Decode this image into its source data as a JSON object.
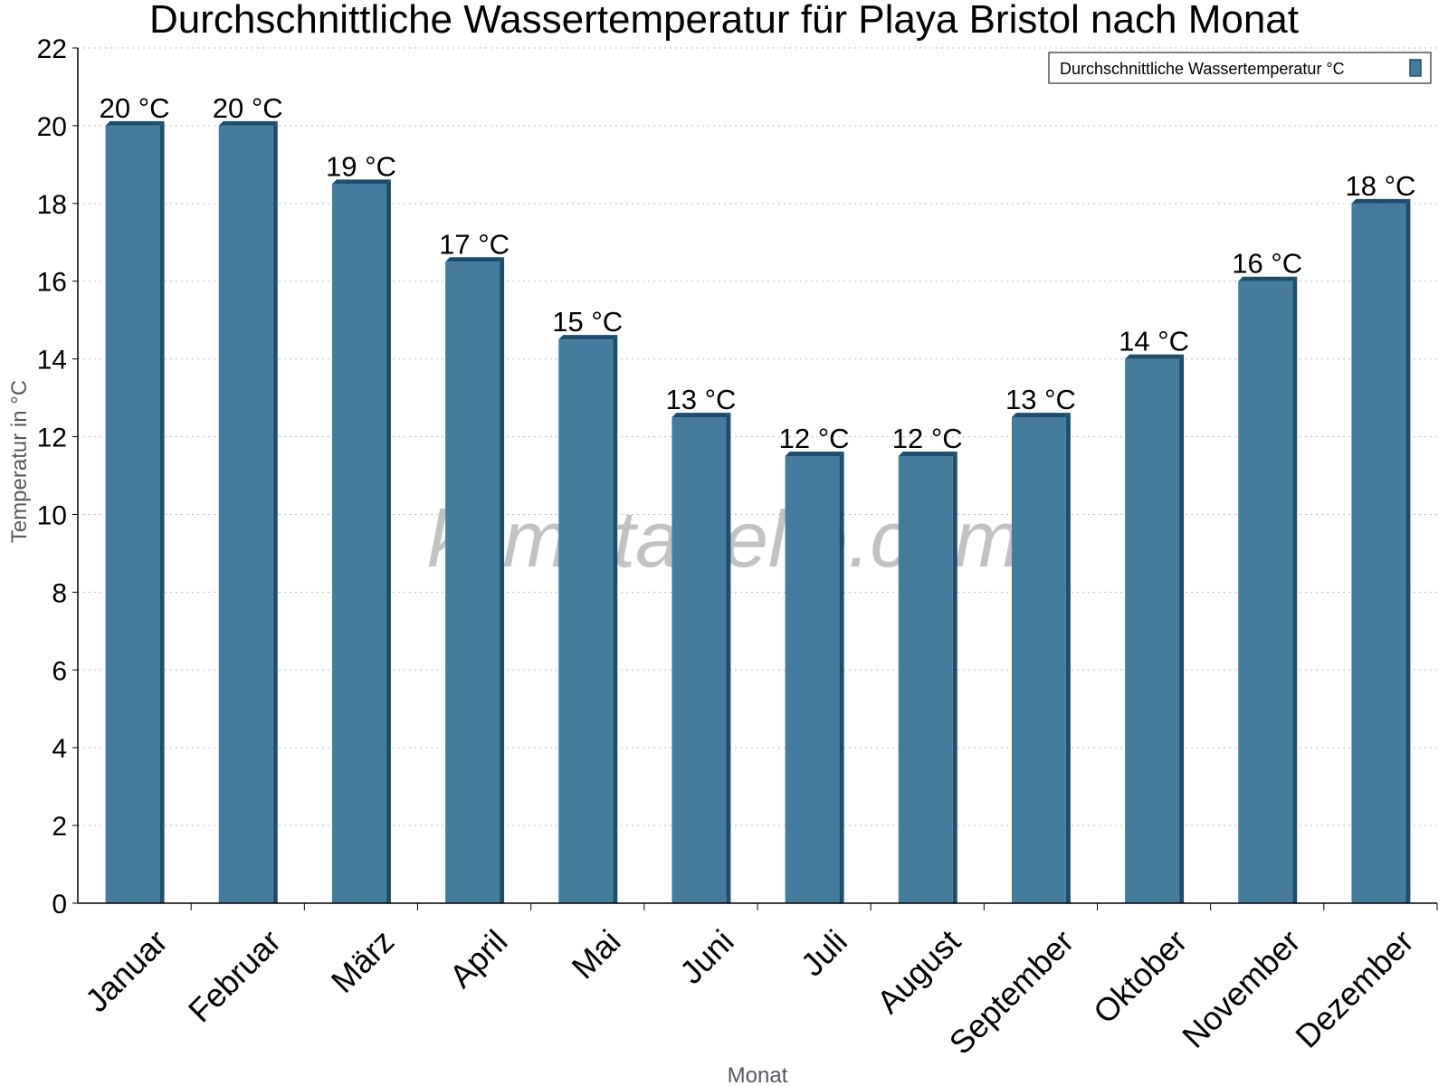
{
  "chart_data": {
    "type": "bar",
    "title": "Durchschnittliche Wassertemperatur für Playa Bristol nach Monat",
    "xlabel": "Monat",
    "ylabel": "Temperatur in °C",
    "ylim": [
      0,
      22
    ],
    "yticks": [
      0,
      2,
      4,
      6,
      8,
      10,
      12,
      14,
      16,
      18,
      20,
      22
    ],
    "grid": true,
    "legend_position": "top-right",
    "categories": [
      "Januar",
      "Februar",
      "März",
      "April",
      "Mai",
      "Juni",
      "Juli",
      "August",
      "September",
      "Oktober",
      "November",
      "Dezember"
    ],
    "series": [
      {
        "name": "Durchschnittliche Wassertemperatur °C",
        "values": [
          20,
          20,
          18.5,
          16.5,
          14.5,
          12.5,
          11.5,
          11.5,
          12.5,
          14,
          16,
          18
        ],
        "labels": [
          "20 °C",
          "20 °C",
          "19 °C",
          "17 °C",
          "15 °C",
          "13 °C",
          "12 °C",
          "12 °C",
          "13 °C",
          "14 °C",
          "16 °C",
          "18 °C"
        ],
        "color": "#457b9d",
        "dark_color": "#1d4e6e"
      }
    ],
    "watermark": "klimatabelle.com"
  }
}
